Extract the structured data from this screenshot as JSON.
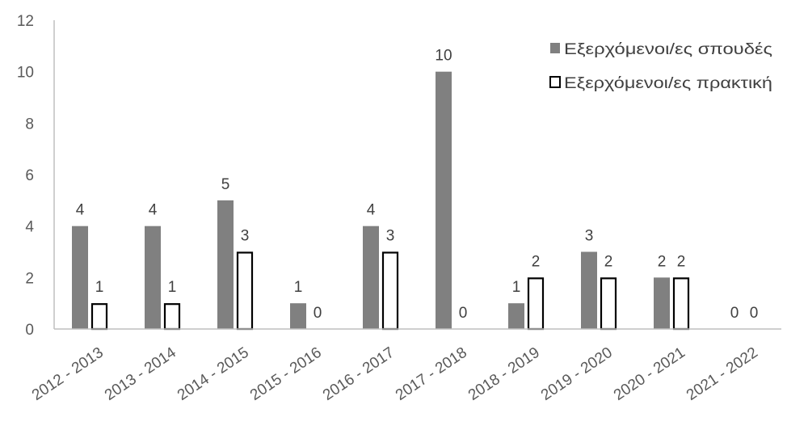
{
  "chart_data": {
    "type": "bar",
    "categories": [
      "2012 - 2013",
      "2013 - 2014",
      "2014 - 2015",
      "2015 - 2016",
      "2016 - 2017",
      "2017 - 2018",
      "2018 - 2019",
      "2019 - 2020",
      "2020 - 2021",
      "2021 - 2022"
    ],
    "series": [
      {
        "name": "Εξερχόμενοι/ες σπουδές",
        "values": [
          4,
          4,
          5,
          1,
          4,
          10,
          1,
          3,
          2,
          0
        ],
        "color": "#808080",
        "style": "filled"
      },
      {
        "name": "Εξερχόμενοι/ες πρακτική",
        "values": [
          1,
          1,
          3,
          0,
          3,
          0,
          2,
          2,
          2,
          0
        ],
        "color": "#000000",
        "style": "outline"
      }
    ],
    "ylim": [
      0,
      12
    ],
    "yticks": [
      0,
      2,
      4,
      6,
      8,
      10,
      12
    ],
    "data_labels": true,
    "grid": false,
    "legend_position": "top-right"
  }
}
